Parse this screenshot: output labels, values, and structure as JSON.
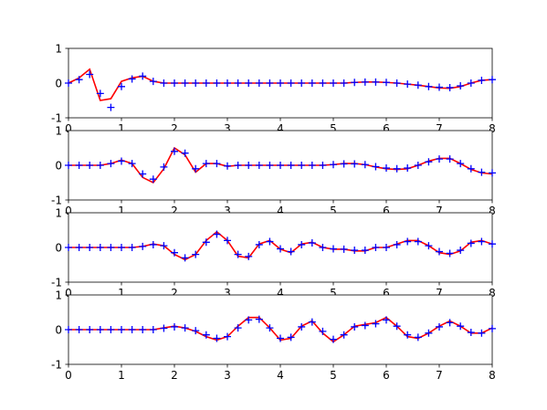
{
  "chart_data": [
    {
      "type": "line",
      "x": [
        0,
        0.2,
        0.4,
        0.6,
        0.8,
        1,
        1.2,
        1.4,
        1.6,
        1.8,
        2,
        2.2,
        2.4,
        2.6,
        2.8,
        3,
        3.2,
        3.4,
        3.6,
        3.8,
        4,
        4.2,
        4.4,
        4.6,
        4.8,
        5,
        5.2,
        5.4,
        5.6,
        5.8,
        6,
        6.2,
        6.4,
        6.6,
        6.8,
        7,
        7.2,
        7.4,
        7.6,
        7.8,
        8
      ],
      "series": [
        {
          "color": "red",
          "values": [
            0,
            0.15,
            0.4,
            -0.5,
            -0.45,
            0.05,
            0.15,
            0.2,
            0.05,
            0,
            0,
            0,
            0,
            0,
            0,
            0,
            0,
            0,
            0,
            0,
            0,
            0,
            0,
            0,
            0,
            0,
            0,
            0.02,
            0.03,
            0.03,
            0.02,
            0,
            -0.03,
            -0.06,
            -0.1,
            -0.14,
            -0.15,
            -0.1,
            0,
            0.08,
            0.1
          ]
        },
        {
          "color": "blue",
          "marker": "+",
          "values": [
            0,
            0.1,
            0.25,
            -0.3,
            -0.7,
            -0.1,
            0.12,
            0.2,
            0.05,
            0,
            0,
            0,
            0,
            0,
            0,
            0,
            0,
            0,
            0,
            0,
            0,
            0,
            0,
            0,
            0,
            0,
            0,
            0.02,
            0.03,
            0.03,
            0.02,
            0,
            -0.03,
            -0.06,
            -0.1,
            -0.12,
            -0.13,
            -0.08,
            0,
            0.08,
            0.1
          ]
        }
      ],
      "xlim": [
        0,
        8
      ],
      "ylim": [
        -1,
        1
      ],
      "xticks": [
        0,
        1,
        2,
        3,
        4,
        5,
        6,
        7,
        8
      ],
      "yticks": [
        -1,
        0,
        1
      ]
    },
    {
      "type": "line",
      "x": [
        0,
        0.2,
        0.4,
        0.6,
        0.8,
        1,
        1.2,
        1.4,
        1.6,
        1.8,
        2,
        2.2,
        2.4,
        2.6,
        2.8,
        3,
        3.2,
        3.4,
        3.6,
        3.8,
        4,
        4.2,
        4.4,
        4.6,
        4.8,
        5,
        5.2,
        5.4,
        5.6,
        5.8,
        6,
        6.2,
        6.4,
        6.6,
        6.8,
        7,
        7.2,
        7.4,
        7.6,
        7.8,
        8
      ],
      "series": [
        {
          "color": "red",
          "values": [
            0,
            0,
            0,
            0,
            0.05,
            0.15,
            0.05,
            -0.35,
            -0.5,
            -0.1,
            0.5,
            0.3,
            -0.2,
            0.05,
            0.05,
            -0.03,
            0,
            0,
            0,
            0,
            0,
            0,
            0,
            0,
            0,
            0.02,
            0.05,
            0.05,
            0.02,
            -0.05,
            -0.1,
            -0.12,
            -0.1,
            0,
            0.12,
            0.2,
            0.2,
            0.05,
            -0.12,
            -0.22,
            -0.25
          ]
        },
        {
          "color": "blue",
          "marker": "+",
          "values": [
            0,
            0,
            0,
            0,
            0.05,
            0.12,
            0.05,
            -0.25,
            -0.4,
            -0.05,
            0.4,
            0.35,
            -0.1,
            0.05,
            0.05,
            -0.02,
            0,
            0,
            0,
            0,
            0,
            0,
            0,
            0,
            0,
            0.02,
            0.04,
            0.04,
            0.02,
            -0.04,
            -0.08,
            -0.1,
            -0.08,
            0,
            0.1,
            0.18,
            0.18,
            0.05,
            -0.1,
            -0.2,
            -0.22
          ]
        }
      ],
      "xlim": [
        0,
        8
      ],
      "ylim": [
        -1,
        1
      ],
      "xticks": [
        0,
        1,
        2,
        3,
        4,
        5,
        6,
        7,
        8
      ],
      "yticks": [
        -1,
        0,
        1
      ]
    },
    {
      "type": "line",
      "x": [
        0,
        0.2,
        0.4,
        0.6,
        0.8,
        1,
        1.2,
        1.4,
        1.6,
        1.8,
        2,
        2.2,
        2.4,
        2.6,
        2.8,
        3,
        3.2,
        3.4,
        3.6,
        3.8,
        4,
        4.2,
        4.4,
        4.6,
        4.8,
        5,
        5.2,
        5.4,
        5.6,
        5.8,
        6,
        6.2,
        6.4,
        6.6,
        6.8,
        7,
        7.2,
        7.4,
        7.6,
        7.8,
        8
      ],
      "series": [
        {
          "color": "red",
          "values": [
            0,
            0,
            0,
            0,
            0,
            0,
            0,
            0.03,
            0.1,
            0.05,
            -0.2,
            -0.35,
            -0.2,
            0.2,
            0.45,
            0.2,
            -0.25,
            -0.3,
            0.1,
            0.2,
            -0.05,
            -0.15,
            0.1,
            0.15,
            0,
            -0.05,
            -0.05,
            -0.1,
            -0.1,
            0,
            0,
            0.1,
            0.2,
            0.2,
            0.05,
            -0.15,
            -0.2,
            -0.1,
            0.15,
            0.2,
            0.1
          ]
        },
        {
          "color": "blue",
          "marker": "+",
          "values": [
            0,
            0,
            0,
            0,
            0,
            0,
            0,
            0.03,
            0.08,
            0.05,
            -0.15,
            -0.3,
            -0.2,
            0.15,
            0.38,
            0.2,
            -0.2,
            -0.26,
            0.08,
            0.17,
            -0.04,
            -0.12,
            0.08,
            0.13,
            0,
            -0.04,
            -0.05,
            -0.08,
            -0.08,
            0,
            0,
            0.08,
            0.17,
            0.17,
            0.05,
            -0.12,
            -0.17,
            -0.08,
            0.12,
            0.17,
            0.1
          ]
        }
      ],
      "xlim": [
        0,
        8
      ],
      "ylim": [
        -1,
        1
      ],
      "xticks": [
        0,
        1,
        2,
        3,
        4,
        5,
        6,
        7,
        8
      ],
      "yticks": [
        -1,
        0,
        1
      ]
    },
    {
      "type": "line",
      "x": [
        0,
        0.2,
        0.4,
        0.6,
        0.8,
        1,
        1.2,
        1.4,
        1.6,
        1.8,
        2,
        2.2,
        2.4,
        2.6,
        2.8,
        3,
        3.2,
        3.4,
        3.6,
        3.8,
        4,
        4.2,
        4.4,
        4.6,
        4.8,
        5,
        5.2,
        5.4,
        5.6,
        5.8,
        6,
        6.2,
        6.4,
        6.6,
        6.8,
        7,
        7.2,
        7.4,
        7.6,
        7.8,
        8
      ],
      "series": [
        {
          "color": "red",
          "values": [
            0,
            0,
            0,
            0,
            0,
            0,
            0,
            0,
            0,
            0.05,
            0.1,
            0.05,
            -0.05,
            -0.2,
            -0.3,
            -0.2,
            0.1,
            0.35,
            0.35,
            0.05,
            -0.3,
            -0.25,
            0.1,
            0.25,
            -0.1,
            -0.35,
            -0.15,
            0.1,
            0.15,
            0.2,
            0.35,
            0.1,
            -0.2,
            -0.25,
            -0.1,
            0.1,
            0.25,
            0.1,
            -0.1,
            -0.1,
            0.05
          ]
        },
        {
          "color": "blue",
          "marker": "+",
          "values": [
            0,
            0,
            0,
            0,
            0,
            0,
            0,
            0,
            0,
            0.04,
            0.08,
            0.05,
            -0.03,
            -0.15,
            -0.25,
            -0.2,
            0.05,
            0.28,
            0.3,
            0.05,
            -0.25,
            -0.22,
            0.08,
            0.22,
            -0.05,
            -0.28,
            -0.15,
            0.08,
            0.12,
            0.17,
            0.28,
            0.1,
            -0.15,
            -0.22,
            -0.1,
            0.08,
            0.2,
            0.1,
            -0.08,
            -0.1,
            0.03
          ]
        }
      ],
      "xlim": [
        0,
        8
      ],
      "ylim": [
        -1,
        1
      ],
      "xticks": [
        0,
        1,
        2,
        3,
        4,
        5,
        6,
        7,
        8
      ],
      "yticks": [
        -1,
        0,
        1
      ]
    }
  ]
}
